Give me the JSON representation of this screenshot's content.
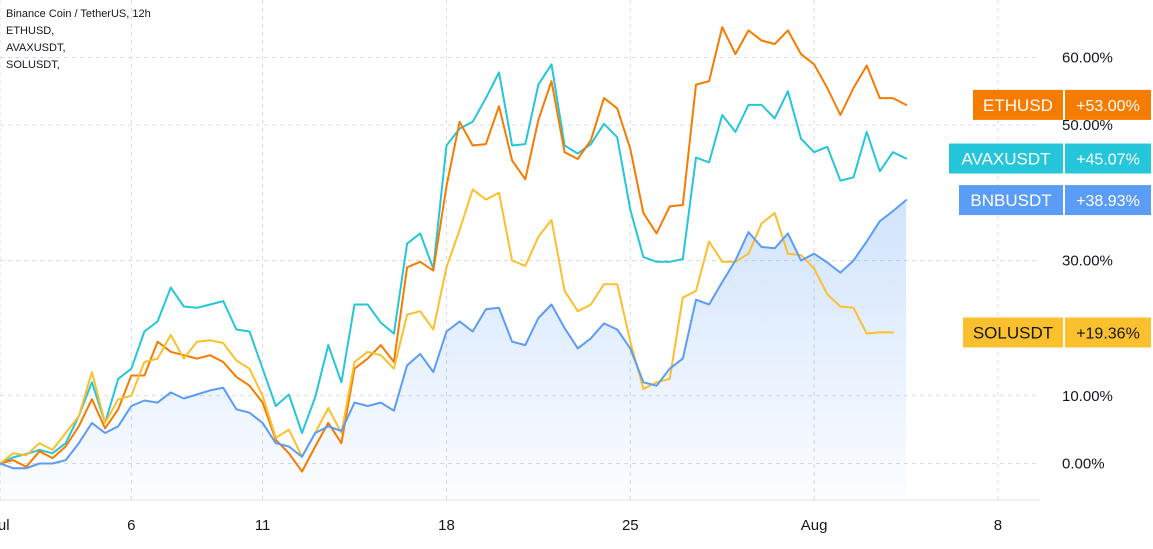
{
  "legend": {
    "title": "Binance Coin / TetherUS, 12h",
    "items": [
      "ETHUSD,",
      "AVAXUSDT,",
      "SOLUSDT,"
    ]
  },
  "chart_data": {
    "type": "line",
    "x_ticks": [
      {
        "label": "Jul",
        "day": 1
      },
      {
        "label": "6",
        "day": 6
      },
      {
        "label": "11",
        "day": 11
      },
      {
        "label": "18",
        "day": 18
      },
      {
        "label": "25",
        "day": 25
      },
      {
        "label": "Aug",
        "day": 32
      },
      {
        "label": "8",
        "day": 39
      }
    ],
    "y_ticks": [
      {
        "label": "0.00%",
        "value": 0
      },
      {
        "label": "10.00%",
        "value": 10
      },
      {
        "label": "30.00%",
        "value": 30
      },
      {
        "label": "50.00%",
        "value": 50
      },
      {
        "label": "60.00%",
        "value": 60
      }
    ],
    "x_range": [
      1,
      40.6
    ],
    "y_range": [
      -5.4,
      68.5
    ],
    "grid": true,
    "series": [
      {
        "name": "AVAXUSDT",
        "color": "#26c6da",
        "label": "+45.07%",
        "values": [
          0,
          0.9,
          1.4,
          2.0,
          1.5,
          3.0,
          7.0,
          12.0,
          6.0,
          12.5,
          14.0,
          19.5,
          21.0,
          26.0,
          23.2,
          23.0,
          23.5,
          24.0,
          19.8,
          19.5,
          14.0,
          8.5,
          10.2,
          4.5,
          9.8,
          17.5,
          12.0,
          23.5,
          23.5,
          20.8,
          19.2,
          32.5,
          34.0,
          28.8,
          47.0,
          49.5,
          50.5,
          54.0,
          57.8,
          47.0,
          47.2,
          56.0,
          59.0,
          47.0,
          45.8,
          47.2,
          50.2,
          48.2,
          37.5,
          30.5,
          29.8,
          29.8,
          30.2,
          45.2,
          44.5,
          51.5,
          49.0,
          53.0,
          53.0,
          51.0,
          55.0,
          48.0,
          46.0,
          46.8,
          41.8,
          42.3,
          49.0,
          43.2,
          46.0,
          45.07
        ]
      },
      {
        "name": "ETHUSD",
        "color": "#f57c00",
        "label": "+53.00%",
        "values": [
          0,
          0.5,
          -0.5,
          1.8,
          0.8,
          2.5,
          5.5,
          9.5,
          5.2,
          8.0,
          13.0,
          13.0,
          18.0,
          16.5,
          16.0,
          15.5,
          16.0,
          15.0,
          12.8,
          11.5,
          9.0,
          3.5,
          1.5,
          -1.2,
          2.5,
          6.0,
          3.0,
          14.0,
          15.5,
          17.5,
          15.0,
          29.0,
          29.8,
          28.5,
          41.0,
          50.5,
          47.0,
          47.2,
          52.8,
          44.8,
          42.0,
          50.8,
          56.5,
          46.0,
          45.0,
          47.8,
          54.0,
          52.5,
          46.5,
          37.0,
          34.0,
          38.0,
          38.2,
          56.0,
          56.5,
          64.5,
          60.5,
          64.0,
          62.5,
          62.0,
          64.0,
          60.5,
          59.0,
          55.5,
          51.5,
          55.5,
          58.8,
          54.0,
          54.0,
          53.0
        ]
      },
      {
        "name": "SOLUSDT",
        "color": "#fbc02d",
        "label": "+19.36%",
        "values": [
          0,
          1.5,
          1.2,
          3.0,
          2.0,
          4.5,
          7.0,
          13.5,
          6.0,
          9.5,
          10.0,
          15.0,
          15.5,
          19.0,
          15.5,
          18.0,
          18.2,
          17.8,
          15.2,
          14.0,
          10.0,
          3.8,
          5.0,
          1.0,
          4.5,
          8.2,
          4.5,
          15.0,
          16.5,
          16.0,
          14.0,
          22.0,
          22.5,
          19.8,
          29.0,
          34.5,
          40.5,
          39.0,
          40.0,
          30.0,
          29.2,
          33.5,
          36.0,
          25.5,
          22.5,
          23.5,
          26.5,
          26.5,
          18.0,
          11.0,
          12.0,
          12.5,
          24.5,
          25.5,
          32.8,
          29.8,
          29.8,
          31.0,
          35.5,
          37.0,
          31.0,
          30.8,
          28.8,
          25.0,
          23.2,
          23.0,
          19.2,
          19.4,
          19.36
        ]
      },
      {
        "name": "BNBUSDT",
        "color": "#5b9cf6",
        "label": "+38.93%",
        "values": [
          0,
          -0.7,
          -0.7,
          0,
          0,
          0.5,
          3.0,
          6.0,
          4.5,
          5.5,
          8.5,
          9.3,
          9.0,
          10.5,
          9.6,
          10.2,
          10.8,
          11.2,
          8.0,
          7.5,
          6.0,
          3.0,
          2.5,
          1.0,
          4.5,
          5.5,
          4.8,
          9.0,
          8.5,
          9.0,
          7.8,
          14.5,
          16.2,
          13.5,
          19.5,
          21.0,
          19.5,
          22.8,
          23.0,
          18.0,
          17.5,
          21.5,
          23.5,
          20.0,
          17.0,
          18.5,
          20.7,
          19.8,
          17.0,
          12.0,
          11.5,
          14.0,
          15.5,
          24.2,
          23.5,
          26.8,
          30.0,
          34.2,
          32.0,
          31.8,
          34.0,
          30.0,
          31.0,
          29.7,
          28.2,
          30.0,
          32.8,
          35.8,
          37.3,
          38.93
        ]
      }
    ],
    "price_labels": [
      {
        "name": "ETHUSD",
        "value": "+53.00%",
        "color": "#f57c00"
      },
      {
        "name": "AVAXUSDT",
        "value": "+45.07%",
        "color": "#26c6da"
      },
      {
        "name": "BNBUSDT",
        "value": "+38.93%",
        "color": "#5b9cf6"
      },
      {
        "name": "SOLUSDT",
        "value": "+19.36%",
        "color": "#fbc02d"
      }
    ]
  }
}
